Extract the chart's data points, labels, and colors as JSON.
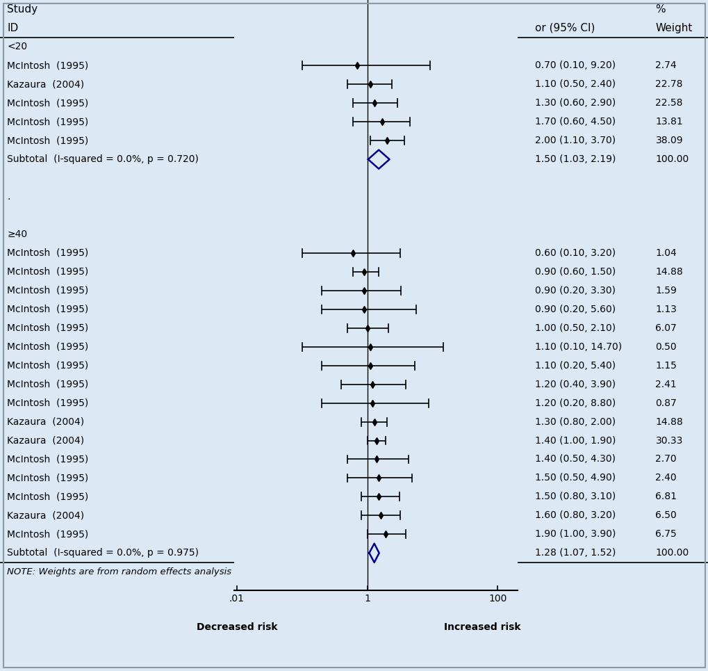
{
  "background_color": "#dce9f5",
  "group1_label": "<20",
  "group1_studies": [
    {
      "label": "McIntosh  (1995)",
      "or": 0.7,
      "ci_lo": 0.1,
      "ci_hi": 9.2,
      "weight": 2.74
    },
    {
      "label": "Kazaura  (2004)",
      "or": 1.1,
      "ci_lo": 0.5,
      "ci_hi": 2.4,
      "weight": 22.78
    },
    {
      "label": "McIntosh  (1995)",
      "or": 1.3,
      "ci_lo": 0.6,
      "ci_hi": 2.9,
      "weight": 22.58
    },
    {
      "label": "McIntosh  (1995)",
      "or": 1.7,
      "ci_lo": 0.6,
      "ci_hi": 4.5,
      "weight": 13.81
    },
    {
      "label": "McIntosh  (1995)",
      "or": 2.0,
      "ci_lo": 1.1,
      "ci_hi": 3.7,
      "weight": 38.09
    }
  ],
  "group1_subtotal": {
    "label": "Subtotal  (I-squared = 0.0%, p = 0.720)",
    "or": 1.5,
    "ci_lo": 1.03,
    "ci_hi": 2.19,
    "weight": 100.0
  },
  "group2_label": "≥40",
  "group2_studies": [
    {
      "label": "McIntosh  (1995)",
      "or": 0.6,
      "ci_lo": 0.1,
      "ci_hi": 3.2,
      "weight": 1.04
    },
    {
      "label": "McIntosh  (1995)",
      "or": 0.9,
      "ci_lo": 0.6,
      "ci_hi": 1.5,
      "weight": 14.88
    },
    {
      "label": "McIntosh  (1995)",
      "or": 0.9,
      "ci_lo": 0.2,
      "ci_hi": 3.3,
      "weight": 1.59
    },
    {
      "label": "McIntosh  (1995)",
      "or": 0.9,
      "ci_lo": 0.2,
      "ci_hi": 5.6,
      "weight": 1.13
    },
    {
      "label": "McIntosh  (1995)",
      "or": 1.0,
      "ci_lo": 0.5,
      "ci_hi": 2.1,
      "weight": 6.07
    },
    {
      "label": "McIntosh  (1995)",
      "or": 1.1,
      "ci_lo": 0.1,
      "ci_hi": 14.7,
      "weight": 0.5
    },
    {
      "label": "McIntosh  (1995)",
      "or": 1.1,
      "ci_lo": 0.2,
      "ci_hi": 5.4,
      "weight": 1.15
    },
    {
      "label": "McIntosh  (1995)",
      "or": 1.2,
      "ci_lo": 0.4,
      "ci_hi": 3.9,
      "weight": 2.41
    },
    {
      "label": "McIntosh  (1995)",
      "or": 1.2,
      "ci_lo": 0.2,
      "ci_hi": 8.8,
      "weight": 0.87
    },
    {
      "label": "Kazaura  (2004)",
      "or": 1.3,
      "ci_lo": 0.8,
      "ci_hi": 2.0,
      "weight": 14.88
    },
    {
      "label": "Kazaura  (2004)",
      "or": 1.4,
      "ci_lo": 1.0,
      "ci_hi": 1.9,
      "weight": 30.33
    },
    {
      "label": "McIntosh  (1995)",
      "or": 1.4,
      "ci_lo": 0.5,
      "ci_hi": 4.3,
      "weight": 2.7
    },
    {
      "label": "McIntosh  (1995)",
      "or": 1.5,
      "ci_lo": 0.5,
      "ci_hi": 4.9,
      "weight": 2.4
    },
    {
      "label": "McIntosh  (1995)",
      "or": 1.5,
      "ci_lo": 0.8,
      "ci_hi": 3.1,
      "weight": 6.81
    },
    {
      "label": "Kazaura  (2004)",
      "or": 1.6,
      "ci_lo": 0.8,
      "ci_hi": 3.2,
      "weight": 6.5
    },
    {
      "label": "McIntosh  (1995)",
      "or": 1.9,
      "ci_lo": 1.0,
      "ci_hi": 3.9,
      "weight": 6.75
    }
  ],
  "group2_subtotal": {
    "label": "Subtotal  (I-squared = 0.0%, p = 0.975)",
    "or": 1.28,
    "ci_lo": 1.07,
    "ci_hi": 1.52,
    "weight": 100.0
  },
  "note": "NOTE: Weights are from random effects analysis",
  "x_ticks": [
    0.01,
    1,
    100
  ],
  "x_tick_labels": [
    ".01",
    "1",
    "100"
  ],
  "x_label_left": "Decreased risk",
  "x_label_right": "Increased risk",
  "ref_line": 1.0,
  "diamond_color": "#00008B",
  "ci_line_color": "#000000",
  "marker_color": "#000000",
  "text_color": "#000000",
  "header_study": "Study",
  "header_id": "ID",
  "header_or": "or (95% CI)",
  "header_pct": "%",
  "header_weight": "Weight"
}
